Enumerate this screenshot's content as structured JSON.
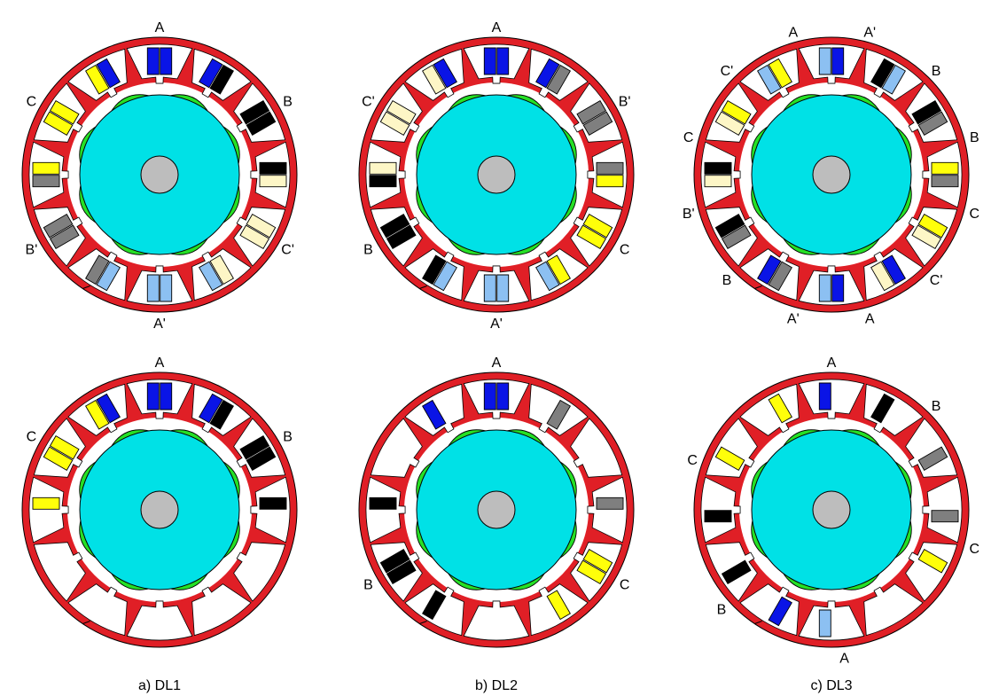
{
  "colors": {
    "stator": "#e01f26",
    "rotor": "#00e1e6",
    "magnet": "#26e026",
    "shaft": "#bdbdbd",
    "gap": "#ffffff",
    "A": "#0a14e6",
    "A_prime": "#8cc0f2",
    "B": "#000000",
    "B_prime": "#7f7f7f",
    "C": "#ffff0a",
    "C_prime": "#fdf6c6"
  },
  "icons": {
    "stator": "stator-core-icon",
    "rotor": "rotor-icon",
    "magnet": "permanent-magnet-icon",
    "shaft": "shaft-icon",
    "coil": "coil-side-icon"
  },
  "captions": [
    "a) DL1",
    "b) DL2",
    "c) DL3"
  ],
  "machines": [
    {
      "slots": [
        [
          "A",
          "A"
        ],
        [
          "A",
          "B"
        ],
        [
          "B",
          "B"
        ],
        [
          "B",
          "C_prime"
        ],
        [
          "C_prime",
          "C_prime"
        ],
        [
          "C_prime",
          "A_prime"
        ],
        [
          "A_prime",
          "A_prime"
        ],
        [
          "A_prime",
          "B_prime"
        ],
        [
          "B_prime",
          "B_prime"
        ],
        [
          "B_prime",
          "C"
        ],
        [
          "C",
          "C"
        ],
        [
          "C",
          "A"
        ]
      ],
      "labels": [
        {
          "text": "A",
          "ang": 0
        },
        {
          "text": "B",
          "ang": 60
        },
        {
          "text": "C'",
          "ang": 120
        },
        {
          "text": "A'",
          "ang": 180
        },
        {
          "text": "B'",
          "ang": 240
        },
        {
          "text": "C",
          "ang": 300
        }
      ]
    },
    {
      "slots": [
        [
          "A",
          "A"
        ],
        [
          "A",
          "B_prime"
        ],
        [
          "B_prime",
          "B_prime"
        ],
        [
          "B_prime",
          "C"
        ],
        [
          "C",
          "C"
        ],
        [
          "C",
          "A_prime"
        ],
        [
          "A_prime",
          "A_prime"
        ],
        [
          "A_prime",
          "B"
        ],
        [
          "B",
          "B"
        ],
        [
          "B",
          "C_prime"
        ],
        [
          "C_prime",
          "C_prime"
        ],
        [
          "C_prime",
          "A"
        ]
      ],
      "labels": [
        {
          "text": "A",
          "ang": 0
        },
        {
          "text": "B'",
          "ang": 60
        },
        {
          "text": "C",
          "ang": 120
        },
        {
          "text": "A'",
          "ang": 180
        },
        {
          "text": "B",
          "ang": 240
        },
        {
          "text": "C'",
          "ang": 300
        }
      ]
    },
    {
      "slots": [
        [
          "A_prime",
          "A"
        ],
        [
          "B",
          "A_prime"
        ],
        [
          "B",
          "B_prime"
        ],
        [
          "C",
          "B_prime"
        ],
        [
          "C",
          "C_prime"
        ],
        [
          "A",
          "C_prime"
        ],
        [
          "A",
          "A_prime"
        ],
        [
          "B_prime",
          "A"
        ],
        [
          "B_prime",
          "B"
        ],
        [
          "C_prime",
          "B"
        ],
        [
          "C_prime",
          "C"
        ],
        [
          "A_prime",
          "C"
        ]
      ],
      "labels": [
        {
          "text": "A",
          "ang": -15
        },
        {
          "text": "A'",
          "ang": 15
        },
        {
          "text": "B",
          "ang": 45
        },
        {
          "text": "B",
          "ang": 75
        },
        {
          "text": "C",
          "ang": 105
        },
        {
          "text": "C'",
          "ang": 135
        },
        {
          "text": "A",
          "ang": 165
        },
        {
          "text": "A'",
          "ang": 195
        },
        {
          "text": "B",
          "ang": 225
        },
        {
          "text": "B'",
          "ang": 255
        },
        {
          "text": "C",
          "ang": 285
        },
        {
          "text": "C'",
          "ang": 315
        }
      ]
    },
    {
      "slots": [
        [
          "A",
          "A"
        ],
        [
          "A",
          "B"
        ],
        [
          "B",
          "B"
        ],
        [
          "B",
          null
        ],
        [
          null,
          null
        ],
        [
          null,
          null
        ],
        [
          null,
          null
        ],
        [
          null,
          null
        ],
        [
          null,
          null
        ],
        [
          null,
          "C"
        ],
        [
          "C",
          "C"
        ],
        [
          "C",
          "A"
        ]
      ],
      "labels": [
        {
          "text": "A",
          "ang": 0
        },
        {
          "text": "B",
          "ang": 60
        },
        {
          "text": "C",
          "ang": 300
        }
      ]
    },
    {
      "slots": [
        [
          "A",
          "A"
        ],
        [
          null,
          "B_prime"
        ],
        [
          null,
          null
        ],
        [
          "B_prime",
          null
        ],
        [
          "C",
          "C"
        ],
        [
          "C",
          null
        ],
        [
          null,
          null
        ],
        [
          null,
          "B"
        ],
        [
          "B",
          "B"
        ],
        [
          null,
          "B"
        ],
        [
          null,
          null
        ],
        [
          "A",
          null
        ]
      ],
      "labels": [
        {
          "text": "A",
          "ang": 0
        },
        {
          "text": "C",
          "ang": 120
        },
        {
          "text": "B",
          "ang": 240
        }
      ]
    },
    {
      "slots": [
        [
          "A",
          null
        ],
        [
          "B",
          null
        ],
        [
          null,
          "B_prime"
        ],
        [
          null,
          "B_prime"
        ],
        [
          "C",
          null
        ],
        [
          null,
          null
        ],
        [
          null,
          "A_prime"
        ],
        [
          "A",
          null
        ],
        [
          "B",
          null
        ],
        [
          "B",
          null
        ],
        [
          "C",
          null
        ],
        [
          null,
          "C"
        ]
      ],
      "labels": [
        {
          "text": "A",
          "ang": 0
        },
        {
          "text": "B",
          "ang": 45
        },
        {
          "text": "C",
          "ang": 105
        },
        {
          "text": "A",
          "ang": 175
        },
        {
          "text": "B",
          "ang": 228
        },
        {
          "text": "C",
          "ang": 290
        }
      ]
    }
  ]
}
